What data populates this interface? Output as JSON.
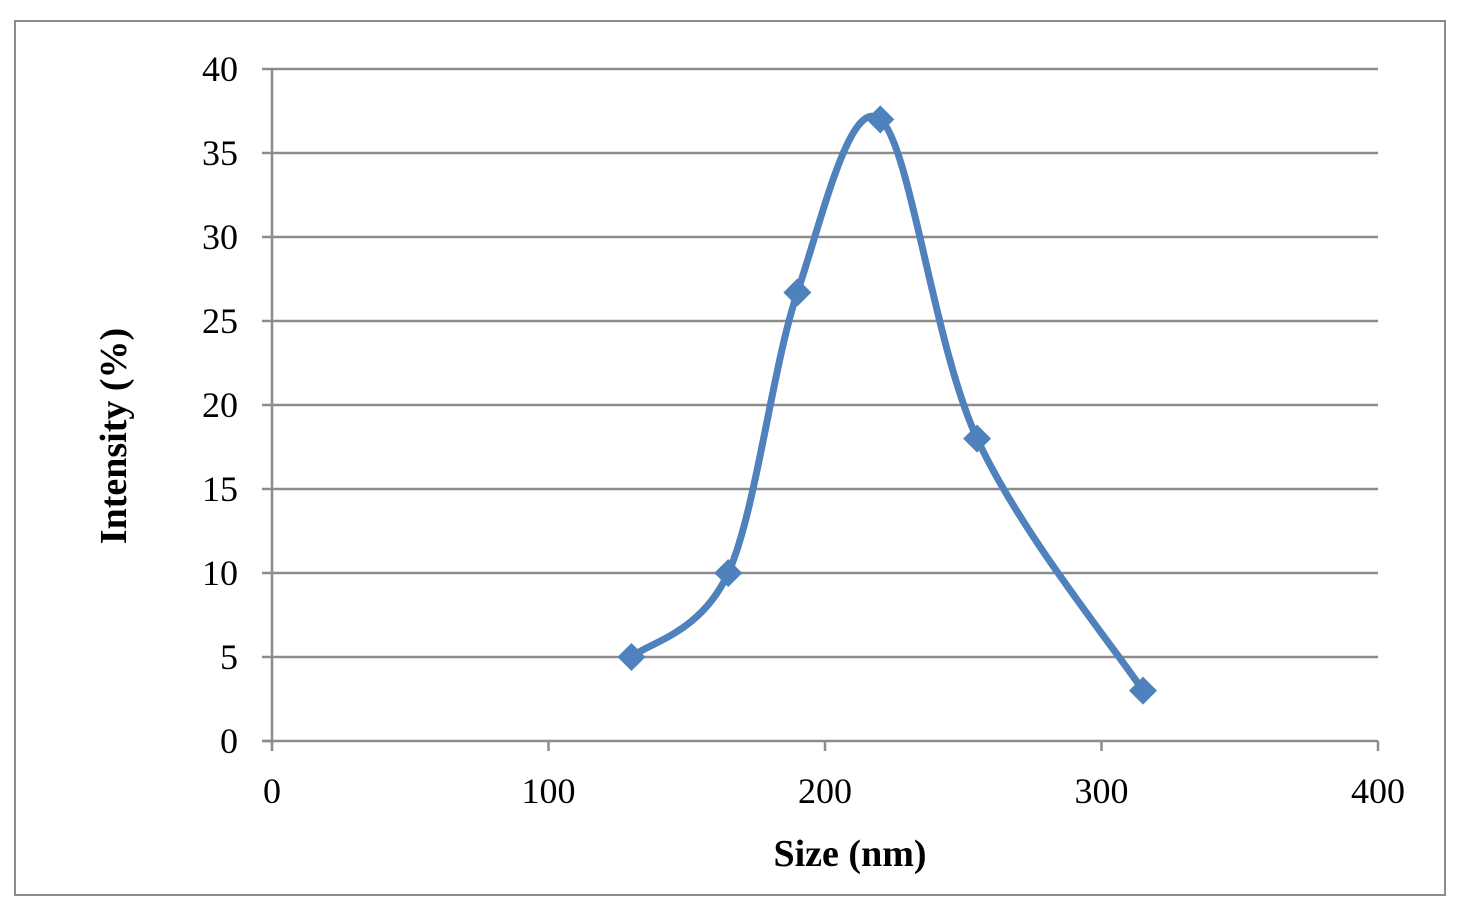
{
  "chart_data": {
    "type": "line",
    "title": "",
    "xlabel": "Size (nm)",
    "ylabel": "Intensity (%)",
    "xlim": [
      0,
      400
    ],
    "ylim": [
      0,
      40
    ],
    "x_ticks": [
      0,
      100,
      200,
      300,
      400
    ],
    "y_ticks": [
      0,
      5,
      10,
      15,
      20,
      25,
      30,
      35,
      40
    ],
    "grid": "horizontal",
    "smoothed": true,
    "marker": "diamond",
    "series": [
      {
        "color": "#4f81bd",
        "points": [
          {
            "x": 130,
            "y": 5
          },
          {
            "x": 165,
            "y": 10
          },
          {
            "x": 190,
            "y": 26.7
          },
          {
            "x": 220,
            "y": 37
          },
          {
            "x": 255,
            "y": 18
          },
          {
            "x": 315,
            "y": 3
          }
        ]
      }
    ]
  }
}
